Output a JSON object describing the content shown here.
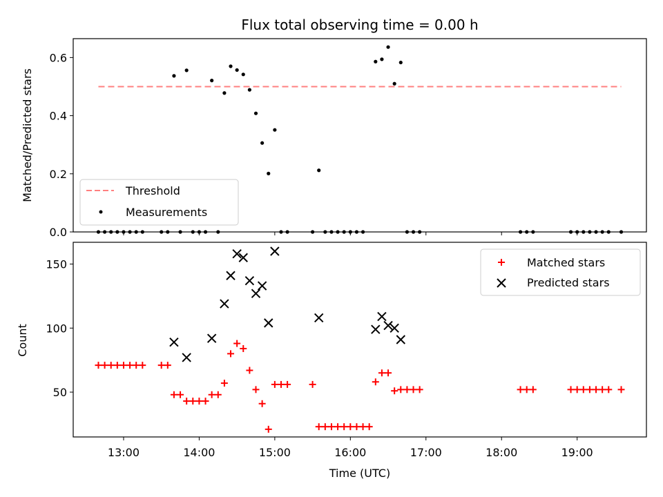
{
  "chart_data": [
    {
      "type": "scatter",
      "title": "Flux total observing time = 0.00 h",
      "xlabel": "",
      "ylabel": "Matched/Predicted stars",
      "ylim": [
        0,
        0.665
      ],
      "xlim": [
        "12:20",
        "19:55"
      ],
      "yticks": [
        "0.0",
        "0.2",
        "0.4",
        "0.6"
      ],
      "ytick_values": [
        0.0,
        0.2,
        0.4,
        0.6
      ],
      "xtick_values": [
        "13:00",
        "14:00",
        "15:00",
        "16:00",
        "17:00",
        "18:00",
        "19:00"
      ],
      "legend_position": "lower-left",
      "threshold": {
        "name": "Threshold",
        "value": 0.5,
        "x_range": [
          "12:40",
          "19:35"
        ],
        "color": "#ff7f7f"
      },
      "series": [
        {
          "name": "Measurements",
          "color": "#000000",
          "points": [
            [
              "13:40",
              0.537
            ],
            [
              "13:50",
              0.556
            ],
            [
              "14:10",
              0.521
            ],
            [
              "14:20",
              0.478
            ],
            [
              "14:25",
              0.57
            ],
            [
              "14:30",
              0.557
            ],
            [
              "14:35",
              0.542
            ],
            [
              "14:40",
              0.489
            ],
            [
              "14:45",
              0.408
            ],
            [
              "14:50",
              0.306
            ],
            [
              "14:55",
              0.201
            ],
            [
              "15:00",
              0.351
            ],
            [
              "15:35",
              0.212
            ],
            [
              "16:20",
              0.586
            ],
            [
              "16:25",
              0.594
            ],
            [
              "16:30",
              0.636
            ],
            [
              "16:35",
              0.51
            ],
            [
              "16:40",
              0.583
            ],
            [
              "12:40",
              0.0
            ],
            [
              "12:45",
              0.0
            ],
            [
              "12:50",
              0.0
            ],
            [
              "12:55",
              0.0
            ],
            [
              "13:00",
              0.0
            ],
            [
              "13:05",
              0.0
            ],
            [
              "13:10",
              0.0
            ],
            [
              "13:15",
              0.0
            ],
            [
              "13:30",
              0.0
            ],
            [
              "13:35",
              0.0
            ],
            [
              "13:45",
              0.0
            ],
            [
              "13:55",
              0.0
            ],
            [
              "14:00",
              0.0
            ],
            [
              "14:05",
              0.0
            ],
            [
              "14:15",
              0.0
            ],
            [
              "15:05",
              0.0
            ],
            [
              "15:10",
              0.0
            ],
            [
              "15:30",
              0.0
            ],
            [
              "15:40",
              0.0
            ],
            [
              "15:45",
              0.0
            ],
            [
              "15:50",
              0.0
            ],
            [
              "15:55",
              0.0
            ],
            [
              "16:00",
              0.0
            ],
            [
              "16:05",
              0.0
            ],
            [
              "16:10",
              0.0
            ],
            [
              "16:45",
              0.0
            ],
            [
              "16:50",
              0.0
            ],
            [
              "16:55",
              0.0
            ],
            [
              "18:15",
              0.0
            ],
            [
              "18:20",
              0.0
            ],
            [
              "18:25",
              0.0
            ],
            [
              "18:55",
              0.0
            ],
            [
              "19:00",
              0.0
            ],
            [
              "19:05",
              0.0
            ],
            [
              "19:10",
              0.0
            ],
            [
              "19:15",
              0.0
            ],
            [
              "19:20",
              0.0
            ],
            [
              "19:25",
              0.0
            ],
            [
              "19:35",
              0.0
            ]
          ]
        }
      ]
    },
    {
      "type": "scatter",
      "title": "",
      "xlabel": "Time (UTC)",
      "ylabel": "Count",
      "ylim": [
        15,
        167
      ],
      "xlim": [
        "12:20",
        "19:55"
      ],
      "yticks": [
        "50",
        "100",
        "150"
      ],
      "ytick_values": [
        50,
        100,
        150
      ],
      "xticks": [
        "13:00",
        "14:00",
        "15:00",
        "16:00",
        "17:00",
        "18:00",
        "19:00"
      ],
      "xtick_values": [
        "13:00",
        "14:00",
        "15:00",
        "16:00",
        "17:00",
        "18:00",
        "19:00"
      ],
      "legend_position": "upper-right",
      "series": [
        {
          "name": "Matched stars",
          "marker": "plus",
          "color": "#ff0000",
          "points": [
            [
              "12:40",
              71
            ],
            [
              "12:45",
              71
            ],
            [
              "12:50",
              71
            ],
            [
              "12:55",
              71
            ],
            [
              "13:00",
              71
            ],
            [
              "13:05",
              71
            ],
            [
              "13:10",
              71
            ],
            [
              "13:15",
              71
            ],
            [
              "13:30",
              71
            ],
            [
              "13:35",
              71
            ],
            [
              "13:40",
              48
            ],
            [
              "13:45",
              48
            ],
            [
              "13:50",
              43
            ],
            [
              "13:55",
              43
            ],
            [
              "14:00",
              43
            ],
            [
              "14:05",
              43
            ],
            [
              "14:10",
              48
            ],
            [
              "14:15",
              48
            ],
            [
              "14:20",
              57
            ],
            [
              "14:25",
              80
            ],
            [
              "14:30",
              88
            ],
            [
              "14:35",
              84
            ],
            [
              "14:40",
              67
            ],
            [
              "14:45",
              52
            ],
            [
              "14:50",
              41
            ],
            [
              "14:55",
              21
            ],
            [
              "15:00",
              56
            ],
            [
              "15:05",
              56
            ],
            [
              "15:10",
              56
            ],
            [
              "15:30",
              56
            ],
            [
              "15:35",
              23
            ],
            [
              "15:40",
              23
            ],
            [
              "15:45",
              23
            ],
            [
              "15:50",
              23
            ],
            [
              "15:55",
              23
            ],
            [
              "16:00",
              23
            ],
            [
              "16:05",
              23
            ],
            [
              "16:10",
              23
            ],
            [
              "16:15",
              23
            ],
            [
              "16:20",
              58
            ],
            [
              "16:25",
              65
            ],
            [
              "16:30",
              65
            ],
            [
              "16:35",
              51
            ],
            [
              "16:40",
              52
            ],
            [
              "16:45",
              52
            ],
            [
              "16:50",
              52
            ],
            [
              "16:55",
              52
            ],
            [
              "18:15",
              52
            ],
            [
              "18:20",
              52
            ],
            [
              "18:25",
              52
            ],
            [
              "18:55",
              52
            ],
            [
              "19:00",
              52
            ],
            [
              "19:05",
              52
            ],
            [
              "19:10",
              52
            ],
            [
              "19:15",
              52
            ],
            [
              "19:20",
              52
            ],
            [
              "19:25",
              52
            ],
            [
              "19:35",
              52
            ]
          ]
        },
        {
          "name": "Predicted stars",
          "marker": "x",
          "color": "#000000",
          "points": [
            [
              "13:40",
              89
            ],
            [
              "13:50",
              77
            ],
            [
              "14:10",
              92
            ],
            [
              "14:20",
              119
            ],
            [
              "14:25",
              141
            ],
            [
              "14:30",
              158
            ],
            [
              "14:35",
              155
            ],
            [
              "14:40",
              137
            ],
            [
              "14:45",
              127
            ],
            [
              "14:50",
              133
            ],
            [
              "14:55",
              104
            ],
            [
              "15:00",
              160
            ],
            [
              "15:35",
              108
            ],
            [
              "16:20",
              99
            ],
            [
              "16:25",
              109
            ],
            [
              "16:30",
              102
            ],
            [
              "16:35",
              100
            ],
            [
              "16:40",
              91
            ]
          ]
        }
      ]
    }
  ]
}
